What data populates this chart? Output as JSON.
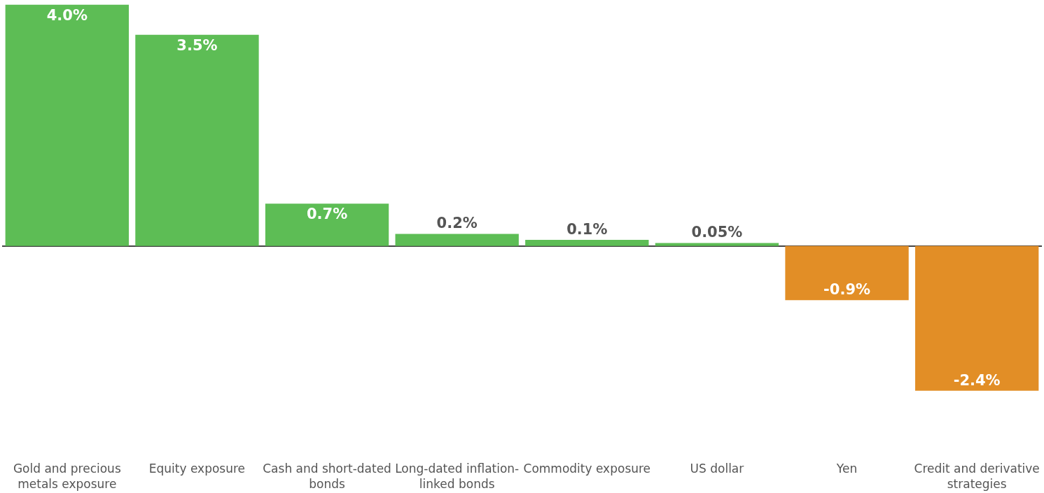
{
  "chart_data": {
    "type": "bar",
    "categories": [
      "Gold and precious metals exposure",
      "Equity exposure",
      "Cash and short-dated bonds",
      "Long-dated inflation-linked bonds",
      "Commodity exposure",
      "US dollar",
      "Yen",
      "Credit and derivative strategies"
    ],
    "values": [
      4.0,
      3.5,
      0.7,
      0.2,
      0.1,
      0.05,
      -0.9,
      -2.4
    ],
    "colors": [
      "#5dbd55",
      "#5dbd55",
      "#5dbd55",
      "#5dbd55",
      "#5dbd55",
      "#5dbd55",
      "#e28e26",
      "#e28e26"
    ],
    "value_labels": [
      "4.0%",
      "3.5%",
      "0.7%",
      "0.2%",
      "0.1%",
      "0.05%",
      "-0.9%",
      "-2.4%"
    ],
    "legend": false
  }
}
